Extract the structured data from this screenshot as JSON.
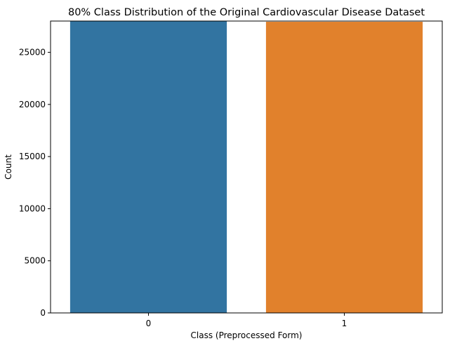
{
  "chart_data": {
    "type": "bar",
    "title": "80% Class Distribution of the Original Cardiovascular Disease Dataset",
    "xlabel": "Class (Preprocessed Form)",
    "ylabel": "Count",
    "categories": [
      "0",
      "1"
    ],
    "values": [
      28000,
      27930
    ],
    "ylim": [
      0,
      28000
    ],
    "yticks": [
      "0",
      "5000",
      "10000",
      "15000",
      "20000",
      "25000"
    ],
    "grid": false,
    "legend": "none",
    "colors": [
      "#3274a1",
      "#e1812c"
    ]
  }
}
